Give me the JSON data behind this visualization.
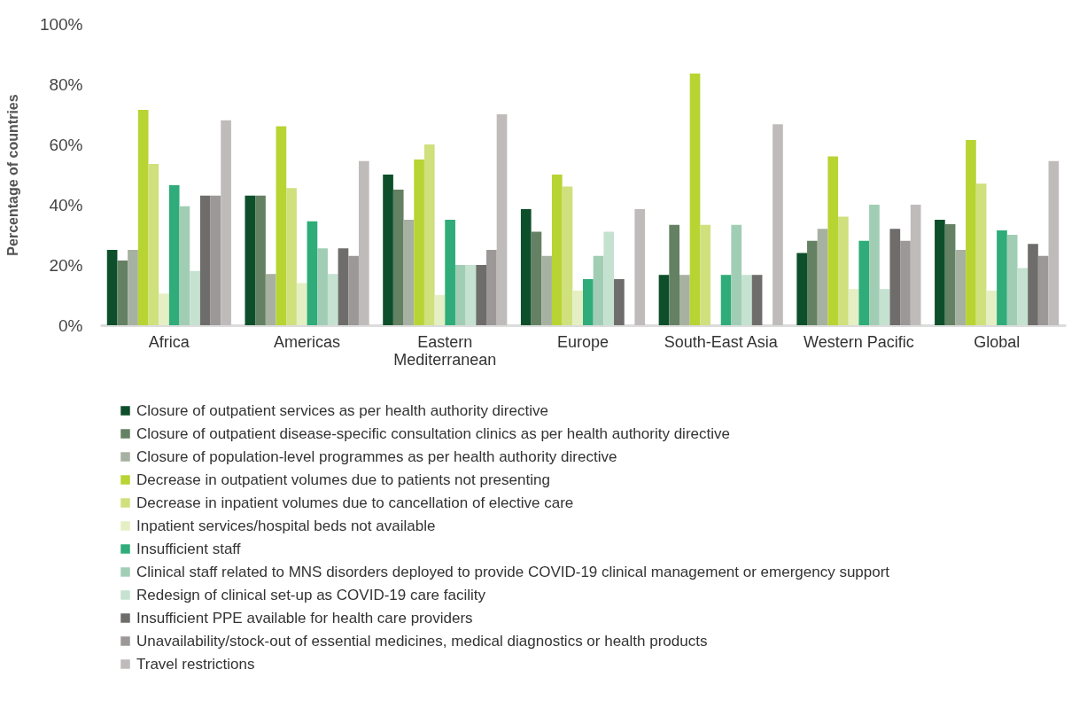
{
  "chart_data": {
    "type": "bar",
    "ylabel": "Percentage of countries",
    "categories": [
      "Africa",
      "Americas",
      "Eastern Mediterranean",
      "Europe",
      "South-East Asia",
      "Western Pacific",
      "Global"
    ],
    "ylim": [
      0,
      100
    ],
    "yticks": [
      {
        "value": 0,
        "label": "0%"
      },
      {
        "value": 20,
        "label": "20%"
      },
      {
        "value": 40,
        "label": "40%"
      },
      {
        "value": 60,
        "label": "60%"
      },
      {
        "value": 80,
        "label": "80%"
      },
      {
        "value": 100,
        "label": "100%"
      }
    ],
    "legend": "bottom",
    "series": [
      {
        "name": "Closure of outpatient services as per health authority directive",
        "color": "#0d4f2a",
        "values": [
          25,
          43,
          50,
          38.5,
          16.7,
          24,
          35
        ]
      },
      {
        "name": "Closure of outpatient disease-specific consultation clinics as per health authority directive",
        "color": "#648163",
        "values": [
          21.5,
          43,
          45,
          31,
          33.3,
          28,
          33.5
        ]
      },
      {
        "name": "Closure of population-level programmes as per health authority directive",
        "color": "#a7b1a1",
        "values": [
          25,
          17,
          35,
          23,
          16.7,
          32,
          25
        ]
      },
      {
        "name": "Decrease in outpatient volumes due to patients not presenting",
        "color": "#b7d433",
        "values": [
          71.5,
          66,
          55,
          50,
          83.5,
          56,
          61.5
        ]
      },
      {
        "name": "Decrease in inpatient volumes due to cancellation of elective care",
        "color": "#cfe07d",
        "values": [
          53.5,
          45.5,
          60,
          46,
          33.3,
          36,
          47
        ]
      },
      {
        "name": "Inpatient services/hospital beds not available",
        "color": "#e5efc4",
        "values": [
          10.5,
          14,
          10,
          11.5,
          0,
          12,
          11.5
        ]
      },
      {
        "name": "Insufficient staff",
        "color": "#2fac79",
        "values": [
          46.5,
          34.5,
          35,
          15.3,
          16.7,
          28,
          31.5
        ]
      },
      {
        "name": "Clinical staff related to MNS disorders deployed to provide COVID-19 clinical management or emergency support",
        "color": "#a1cdb5",
        "values": [
          39.5,
          25.5,
          20,
          23,
          33.3,
          40,
          30
        ]
      },
      {
        "name": "Redesign of clinical set-up as COVID-19 care facility",
        "color": "#c5e2d1",
        "values": [
          18,
          17,
          20,
          31,
          16.7,
          12,
          19
        ]
      },
      {
        "name": "Insufficient PPE available for health care providers",
        "color": "#6e6d6b",
        "values": [
          43,
          25.5,
          20,
          15.3,
          16.7,
          32,
          27
        ]
      },
      {
        "name": "Unavailability/stock-out of essential medicines, medical diagnostics or health products",
        "color": "#9c9897",
        "values": [
          43,
          23,
          25,
          0,
          0,
          28,
          23
        ]
      },
      {
        "name": "Travel restrictions",
        "color": "#bfbbba",
        "values": [
          68,
          54.5,
          70,
          38.5,
          66.7,
          40,
          54.5
        ]
      }
    ]
  }
}
